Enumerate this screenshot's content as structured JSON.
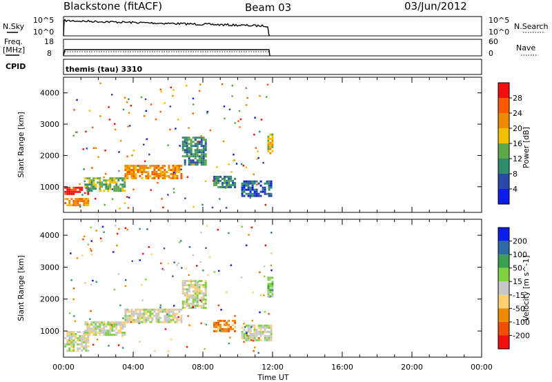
{
  "header": {
    "station": "Blackstone (fitACF)",
    "beam": "Beam 03",
    "date": "03/Jun/2012"
  },
  "top_panels": {
    "nsky_label": "N.Sky",
    "nsearch_label": "N.Search",
    "nsky_ticks": [
      "10^5",
      "10^0"
    ],
    "nsearch_ticks": [
      "10^5",
      "10^0"
    ],
    "freq_label_1": "Freq.",
    "freq_label_2": "[MHz]",
    "freq_ticks": [
      "18",
      "8"
    ],
    "nave_label": "Nave",
    "nave_ticks": [
      "60",
      "0"
    ],
    "cpid_label": "CPID",
    "cpid_text": "themis (tau) 3310"
  },
  "chart_data": [
    {
      "type": "heatmap",
      "name": "power-panel",
      "ylabel": "Slant Range [km]",
      "ylim": [
        180,
        4500
      ],
      "yticks": [
        1000,
        2000,
        3000,
        4000
      ],
      "xlim": [
        0,
        24
      ],
      "colorbar_label": "Power [dB]",
      "colorbar_ticks": [
        "4",
        "8",
        "12",
        "16",
        "20",
        "24",
        "28"
      ],
      "colors": [
        "#0a1ee8",
        "#2b4aa8",
        "#2f8a6e",
        "#5ea84a",
        "#f0c000",
        "#f08a00",
        "#ff5a00",
        "#f01010"
      ],
      "regions": [
        {
          "t": [
            0.05,
            1.4
          ],
          "r": [
            780,
            1000
          ],
          "level": 7
        },
        {
          "t": [
            0.05,
            1.4
          ],
          "r": [
            380,
            640
          ],
          "level": 5
        },
        {
          "t": [
            1.2,
            3.5
          ],
          "r": [
            900,
            1300
          ],
          "level": 3
        },
        {
          "t": [
            3.5,
            6.8
          ],
          "r": [
            1300,
            1700
          ],
          "level": 5
        },
        {
          "t": [
            6.8,
            8.2
          ],
          "r": [
            1700,
            2600
          ],
          "level": 2
        },
        {
          "t": [
            8.6,
            9.8
          ],
          "r": [
            1000,
            1350
          ],
          "level": 2
        },
        {
          "t": [
            10.2,
            11.9
          ],
          "r": [
            700,
            1200
          ],
          "level": 1
        },
        {
          "t": [
            11.7,
            11.95
          ],
          "r": [
            2100,
            2700
          ],
          "level": 4
        }
      ]
    },
    {
      "type": "heatmap",
      "name": "velocity-panel",
      "ylabel": "Slant Range [km]",
      "ylim": [
        180,
        4500
      ],
      "yticks": [
        1000,
        2000,
        3000,
        4000
      ],
      "xlim": [
        0,
        24
      ],
      "xticks": [
        "00:00",
        "04:00",
        "08:00",
        "12:00",
        "16:00",
        "20:00",
        "00:00"
      ],
      "xlabel": "Time UT",
      "colorbar_label": "Velocity [m s^-1]",
      "colorbar_ticks": [
        "200",
        "100",
        "50",
        "15",
        "-15",
        "-50",
        "-100",
        "-200"
      ],
      "colors": [
        "#f01010",
        "#f05000",
        "#f08a00",
        "#ffd070",
        "#c8c8c8",
        "#80d040",
        "#3aa050",
        "#2f6aa8",
        "#0a1ee8"
      ],
      "regions": [
        {
          "t": [
            0.05,
            1.4
          ],
          "r": [
            380,
            1000
          ],
          "level": 4
        },
        {
          "t": [
            1.2,
            3.5
          ],
          "r": [
            900,
            1300
          ],
          "level": 4
        },
        {
          "t": [
            3.5,
            6.8
          ],
          "r": [
            1300,
            1700
          ],
          "level": 4
        },
        {
          "t": [
            6.8,
            8.2
          ],
          "r": [
            1700,
            2600
          ],
          "level": 4
        },
        {
          "t": [
            8.6,
            9.8
          ],
          "r": [
            1000,
            1350
          ],
          "level": 2
        },
        {
          "t": [
            10.2,
            11.9
          ],
          "r": [
            700,
            1200
          ],
          "level": 4
        },
        {
          "t": [
            11.7,
            11.95
          ],
          "r": [
            2100,
            2700
          ],
          "level": 5
        }
      ]
    }
  ]
}
